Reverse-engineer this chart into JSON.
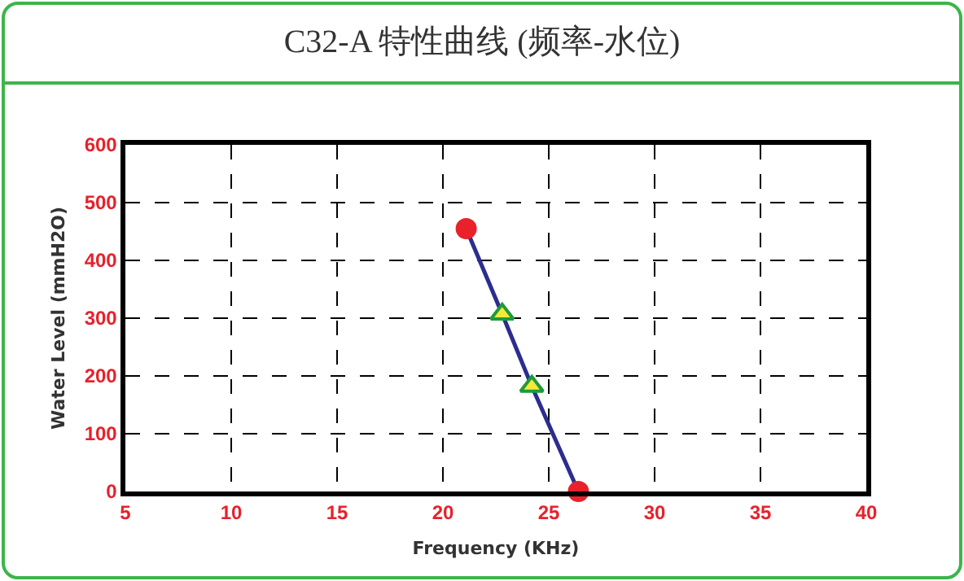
{
  "chart_data": {
    "type": "line",
    "title": "C32-A 特性曲线 (频率-水位)",
    "xlabel": "Frequency (KHz)",
    "ylabel": "Water Level (mmH2O)",
    "xlim": [
      5,
      40
    ],
    "xticks": [
      5,
      10,
      15,
      20,
      25,
      30,
      35,
      40
    ],
    "ylim": [
      0,
      600
    ],
    "yticks": [
      0,
      100,
      200,
      300,
      400,
      500,
      600
    ],
    "grid": true,
    "series": [
      {
        "color": "#2b2d8f",
        "marker": "none",
        "line_style": "solid",
        "x": [
          21.1,
          22.8,
          24.2,
          26.4
        ],
        "values": [
          455,
          307,
          182,
          0
        ]
      },
      {
        "type": "scatter",
        "color": "#e8212b",
        "marker": "circle",
        "x": [
          21.1,
          26.4
        ],
        "values": [
          455,
          0
        ]
      },
      {
        "type": "scatter",
        "color": "#1f9a3a",
        "marker": "triangle",
        "x": [
          22.8,
          24.2
        ],
        "values": [
          307,
          182
        ]
      }
    ]
  }
}
